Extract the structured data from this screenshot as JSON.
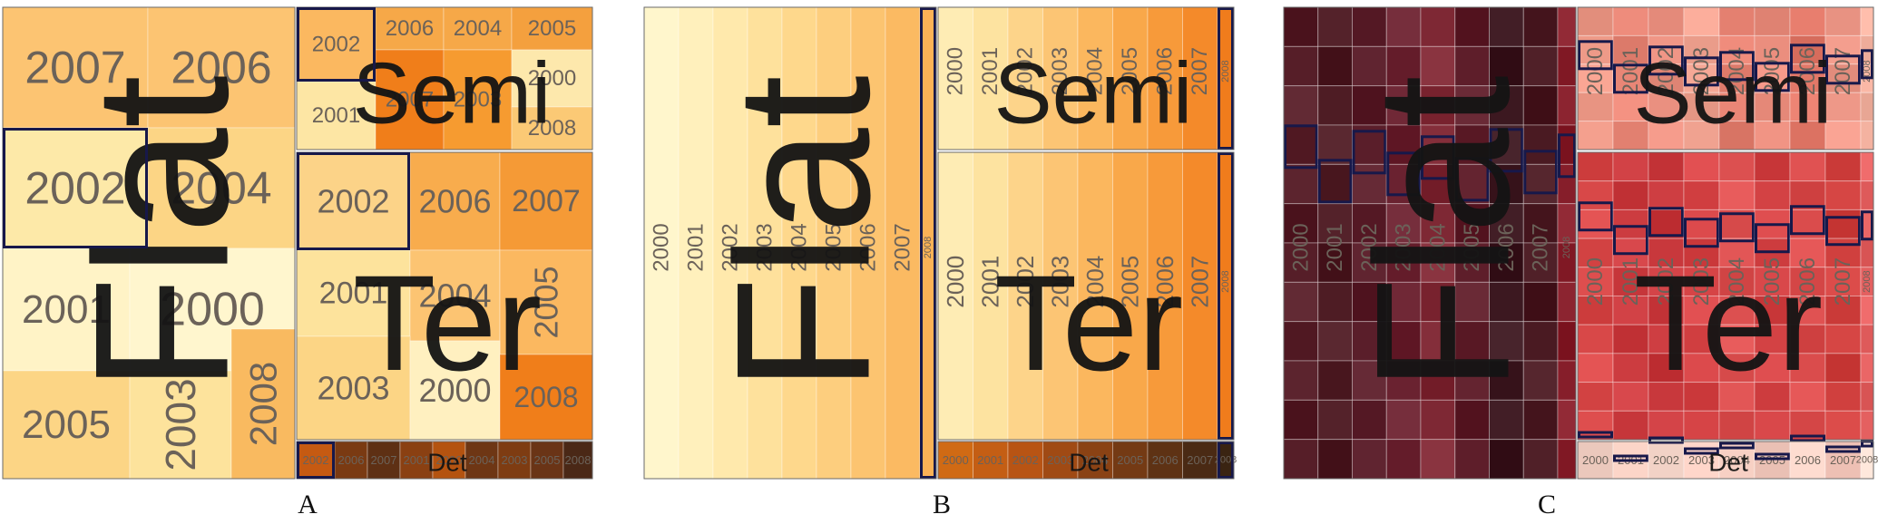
{
  "chart_data": [
    {
      "type": "treemap",
      "layout": "squarified",
      "panel_label": "A",
      "groups": [
        {
          "name": "Flat",
          "cells": [
            {
              "year": "2007",
              "value": 9,
              "color": "#fcc472"
            },
            {
              "year": "2006",
              "value": 7,
              "color": "#fcc472"
            },
            {
              "year": "2002",
              "value": 9,
              "color": "#fde9a8",
              "highlight": true
            },
            {
              "year": "2004",
              "value": 9,
              "color": "#fcd585"
            },
            {
              "year": "2001",
              "value": 9,
              "color": "#fff3c6"
            },
            {
              "year": "2000",
              "value": 9,
              "color": "#fff6ce"
            },
            {
              "year": "2005",
              "value": 9,
              "color": "#fcd585"
            },
            {
              "year": "2003",
              "value": 5,
              "color": "#fde39c"
            },
            {
              "year": "2008",
              "value": 3,
              "color": "#f9ba60"
            }
          ]
        },
        {
          "name": "Semi",
          "cells": [
            {
              "year": "2002",
              "value": 2,
              "color": "#fbb860",
              "highlight": true
            },
            {
              "year": "2006",
              "value": 2,
              "color": "#f6a848"
            },
            {
              "year": "2004",
              "value": 2,
              "color": "#f6a848"
            },
            {
              "year": "2005",
              "value": 1.5,
              "color": "#f4a03e"
            },
            {
              "year": "2001",
              "value": 1.5,
              "color": "#fde6a4"
            },
            {
              "year": "2007",
              "value": 1.5,
              "color": "#f07e1a"
            },
            {
              "year": "2003",
              "value": 1.5,
              "color": "#f69b30"
            },
            {
              "year": "2000",
              "value": 1,
              "color": "#fde8ac"
            },
            {
              "year": "2008",
              "value": 1,
              "color": "#fbc975"
            }
          ]
        },
        {
          "name": "Ter",
          "cells": [
            {
              "year": "2002",
              "value": 5,
              "color": "#fcd388",
              "highlight": true
            },
            {
              "year": "2006",
              "value": 5,
              "color": "#f8ac4d"
            },
            {
              "year": "2007",
              "value": 5,
              "color": "#f59a36"
            },
            {
              "year": "2001",
              "value": 4,
              "color": "#fde39c"
            },
            {
              "year": "2004",
              "value": 4,
              "color": "#fcc472"
            },
            {
              "year": "2005",
              "value": 3,
              "color": "#fbb860"
            },
            {
              "year": "2003",
              "value": 4,
              "color": "#fcd585"
            },
            {
              "year": "2000",
              "value": 4,
              "color": "#fff0c0"
            },
            {
              "year": "2008",
              "value": 2,
              "color": "#f07e1a"
            }
          ]
        },
        {
          "name": "Det",
          "cells": [
            {
              "year": "2002",
              "value": 1,
              "color": "#c65a12",
              "highlight": true
            },
            {
              "year": "2006",
              "value": 1,
              "color": "#7a3a12"
            },
            {
              "year": "2007",
              "value": 1,
              "color": "#5e3014"
            },
            {
              "year": "2001",
              "value": 1,
              "color": "#8a4012"
            },
            {
              "year": "2000",
              "value": 1,
              "color": "#b45310"
            },
            {
              "year": "2004",
              "value": 1,
              "color": "#6e3614"
            },
            {
              "year": "2003",
              "value": 1,
              "color": "#7e3c12"
            },
            {
              "year": "2005",
              "value": 1,
              "color": "#6a3416"
            },
            {
              "year": "2008",
              "value": 1,
              "color": "#4a2816"
            }
          ]
        }
      ]
    },
    {
      "type": "treemap",
      "layout": "slice-and-dice",
      "panel_label": "B",
      "groups": [
        {
          "name": "Flat",
          "years": [
            "2000",
            "2001",
            "2002",
            "2003",
            "2004",
            "2005",
            "2006",
            "2007",
            "2008"
          ],
          "colors": [
            "#fff6cc",
            "#fff0bc",
            "#ffe9ac",
            "#fee19c",
            "#fed88c",
            "#fdce7e",
            "#fcc470",
            "#fbba62",
            "#fbb256"
          ],
          "highlight": "2008"
        },
        {
          "name": "Semi",
          "years": [
            "2000",
            "2001",
            "2002",
            "2003",
            "2004",
            "2005",
            "2006",
            "2007",
            "2008"
          ],
          "colors": [
            "#feecb4",
            "#fde3a0",
            "#fdd48a",
            "#fcc574",
            "#fbb75e",
            "#f9a84a",
            "#f79a3a",
            "#f48a2a",
            "#f07c1c"
          ],
          "highlight": "2008"
        },
        {
          "name": "Ter",
          "years": [
            "2000",
            "2001",
            "2002",
            "2003",
            "2004",
            "2005",
            "2006",
            "2007",
            "2008"
          ],
          "colors": [
            "#feecb4",
            "#fde3a0",
            "#fdd48a",
            "#fcc574",
            "#fbb75e",
            "#f9a84a",
            "#f79a3a",
            "#f48a2a",
            "#f07c1c"
          ],
          "highlight": "2008"
        },
        {
          "name": "Det",
          "years": [
            "2000",
            "2001",
            "2002",
            "2003",
            "2004",
            "2005",
            "2006",
            "2007",
            "2008"
          ],
          "colors": [
            "#d06a14",
            "#c45e14",
            "#b85414",
            "#a04a14",
            "#8a4214",
            "#743a14",
            "#5e3214",
            "#4a2a14",
            "#3a2412"
          ],
          "highlight": "2008"
        }
      ]
    },
    {
      "type": "treemap",
      "layout": "spatially-ordered",
      "panel_label": "C",
      "groups": [
        {
          "name": "Flat",
          "years": [
            "2000",
            "2001",
            "2002",
            "2003",
            "2004",
            "2005",
            "2006",
            "2007",
            "2008"
          ],
          "colors": [
            "#561e28",
            "#4e1c24",
            "#5a1e2a",
            "#6a2230",
            "#7e2834",
            "#5e1e2a",
            "#3c1820",
            "#4a1a22",
            "#861e2a"
          ],
          "highlight": [
            "2000",
            "2001",
            "2002",
            "2003",
            "2004",
            "2005",
            "2006",
            "2007",
            "2008"
          ]
        },
        {
          "name": "Semi",
          "years": [
            "2000",
            "2001",
            "2002",
            "2003",
            "2004",
            "2005",
            "2006",
            "2007",
            "2008"
          ],
          "colors": [
            "#ee9a88",
            "#e88676",
            "#ea9080",
            "#f0a290",
            "#e48070",
            "#eb8e7e",
            "#e27868",
            "#ee9888",
            "#f4b2a0"
          ],
          "highlight": [
            "2000",
            "2001",
            "2002",
            "2003",
            "2004",
            "2005",
            "2006",
            "2007",
            "2008"
          ]
        },
        {
          "name": "Ter",
          "years": [
            "2000",
            "2001",
            "2002",
            "2003",
            "2004",
            "2005",
            "2006",
            "2007",
            "2008"
          ],
          "colors": [
            "#d84848",
            "#cc3c40",
            "#c8383c",
            "#d64446",
            "#dc5050",
            "#d34244",
            "#da4c4c",
            "#d0403e",
            "#e46060"
          ],
          "highlight": [
            "2000",
            "2001",
            "2002",
            "2003",
            "2004",
            "2005",
            "2006",
            "2007",
            "2008"
          ]
        },
        {
          "name": "Det",
          "years": [
            "2000",
            "2001",
            "2002",
            "2003",
            "2004",
            "2005",
            "2006",
            "2007",
            "2008"
          ],
          "colors": [
            "#f7d4c8",
            "#f6cfc2",
            "#f8d8cc",
            "#f5cabe",
            "#f7d0c4",
            "#f6ccc0",
            "#f8d6ca",
            "#f4c6ba",
            "#f9dcd0"
          ],
          "highlight": [
            "2000",
            "2001",
            "2002",
            "2003",
            "2004",
            "2005",
            "2006",
            "2007",
            "2008"
          ]
        }
      ]
    }
  ]
}
